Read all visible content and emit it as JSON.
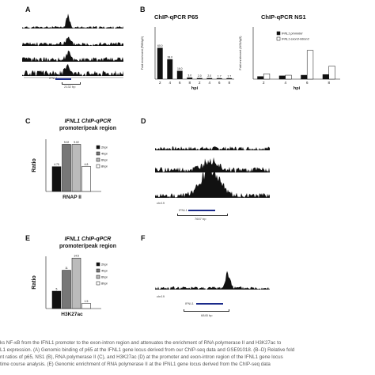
{
  "figure": {
    "panels": {
      "A": {
        "letter": "A",
        "gene_label": "IFNL1",
        "scale_label": "2132 bp"
      },
      "B": {
        "letter": "B",
        "left": {
          "title": "ChIP-qPCR P65",
          "ylabel": "Fold enrichment (P65/IgG)",
          "xlabel": "hpi"
        },
        "right": {
          "title": "ChIP-qPCR NS1",
          "ylabel": "Fold enrichment (NS1/IgG)",
          "xlabel": "hpi",
          "legend": [
            "IFNL1 promoter",
            "IFNL1 exon3-intron3"
          ]
        }
      },
      "C": {
        "letter": "C",
        "title_line1": "IFNL1 ChIP-qPCR",
        "title_line2": "promoter/peak region",
        "ylabel": "Ratio",
        "xlabel": "RNAP II"
      },
      "D": {
        "letter": "D",
        "chrom": "chr19",
        "gene_label": "IFNL1",
        "scale_label": "7607 bp"
      },
      "E": {
        "letter": "E",
        "title_line1": "IFNL1 ChIP-qPCR",
        "title_line2": "promoter/peak region",
        "ylabel": "Ratio",
        "xlabel": "H3K27ac"
      },
      "F": {
        "letter": "F",
        "chrom": "chr19",
        "gene_label": "IFNL1",
        "scale_label": "6845 bp"
      }
    },
    "caption_lines": [
      "ks NF-κB from the IFNL1 promoter to the exon-intron region and attenuates the enrichment of RNA polymerase II and H3K27ac to",
      "L1 expression. (A) Genomic binding of p65 at the IFNL1 gene locus derived from our ChIP-seq data and GSE91018. (B–D) Relative fold",
      "nt ratios of p65, NS1 (B), RNA polymerase II (C), and H3K27ac (D) at the promoter and exon-intron region of the IFNL1 gene locus",
      "time course analysis. (E) Genomic enrichment of RNA polymerase II at the IFNL1 gene locus derived from the ChIP-seq data"
    ]
  },
  "chart_data": [
    {
      "type": "bar",
      "panel": "B-left",
      "title": "ChIP-qPCR P65",
      "xlabel": "hpi",
      "ylabel": "Fold enrichment (P65/IgG)",
      "categories": [
        "2",
        "4",
        "6",
        "8",
        "2",
        "4",
        "6",
        "8"
      ],
      "series": [
        {
          "values": [
            60.0,
            38.0,
            16.0,
            3.0,
            2.0,
            2.0,
            1.7,
            1.7
          ]
        }
      ],
      "data_labels": [
        "60.0",
        "38.0",
        "16.0",
        "3.0",
        "2.0",
        "2.0",
        "1.7",
        "1.7"
      ],
      "ylim": [
        0,
        100
      ]
    },
    {
      "type": "bar",
      "panel": "B-right",
      "title": "ChIP-qPCR NS1",
      "xlabel": "hpi",
      "ylabel": "Fold enrichment (NS1/IgG)",
      "categories": [
        "2",
        "4",
        "6",
        "8"
      ],
      "series": [
        {
          "name": "IFNL1 promoter",
          "values": [
            2.0,
            2.5,
            3.0,
            3.5
          ]
        },
        {
          "name": "IFNL1 exon3-intron3",
          "values": [
            4.0,
            3.0,
            22.0,
            10.0
          ]
        }
      ],
      "ylim": [
        0,
        40
      ]
    },
    {
      "type": "bar",
      "panel": "C",
      "xlabel": "RNAP II",
      "ylabel": "Ratio",
      "categories": [
        "2hpi",
        "4hpi",
        "6hpi",
        "8hpi"
      ],
      "values": [
        4.75,
        9.02,
        9.02,
        4.8
      ],
      "colors": [
        "#111111",
        "#777777",
        "#bbbbbb",
        "#ffffff"
      ],
      "ylim": [
        0,
        10
      ]
    },
    {
      "type": "bar",
      "panel": "E",
      "xlabel": "H3K27ac",
      "ylabel": "Ratio",
      "categories": [
        "2hpi",
        "4hpi",
        "6hpi",
        "8hpi"
      ],
      "values": [
        5.0,
        11.0,
        14.5,
        1.5
      ],
      "colors": [
        "#111111",
        "#777777",
        "#bbbbbb",
        "#ffffff"
      ],
      "ylim": [
        0,
        15
      ]
    }
  ]
}
